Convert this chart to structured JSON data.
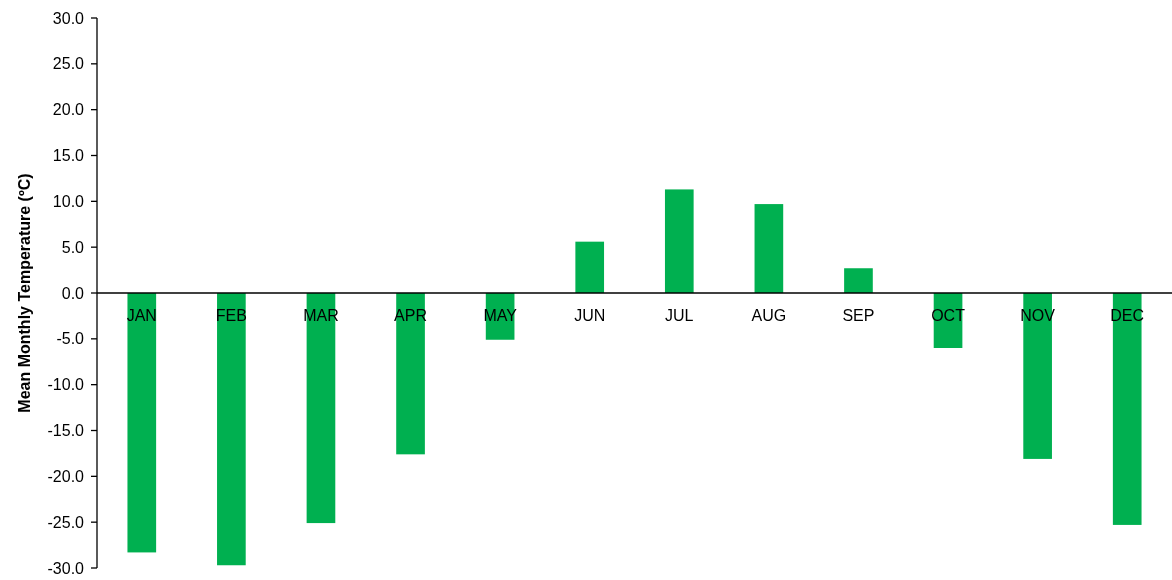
{
  "chart_data": {
    "type": "bar",
    "ylabel": "Mean Monthly Temperature (ºC)",
    "categories": [
      "JAN",
      "FEB",
      "MAR",
      "APR",
      "MAY",
      "JUN",
      "JUL",
      "AUG",
      "SEP",
      "OCT",
      "NOV",
      "DEC"
    ],
    "values": [
      -28.3,
      -29.7,
      -25.1,
      -17.6,
      -5.1,
      5.6,
      11.3,
      9.7,
      2.7,
      -6.0,
      -18.1,
      -25.3
    ],
    "color": "#00b050",
    "ylim": [
      -30,
      30
    ],
    "yticks": [
      {
        "value": -30,
        "label": "-30.0"
      },
      {
        "value": -25,
        "label": "-25.0"
      },
      {
        "value": -20,
        "label": "-20.0"
      },
      {
        "value": -15,
        "label": "-15.0"
      },
      {
        "value": -10,
        "label": "-10.0"
      },
      {
        "value": -5,
        "label": "-5.0"
      },
      {
        "value": 0,
        "label": "0.0"
      },
      {
        "value": 5,
        "label": "5.0"
      },
      {
        "value": 10,
        "label": "10.0"
      },
      {
        "value": 15,
        "label": "15.0"
      },
      {
        "value": 20,
        "label": "20.0"
      },
      {
        "value": 25,
        "label": "25.0"
      },
      {
        "value": 30,
        "label": "30.0"
      }
    ],
    "grid": false
  }
}
